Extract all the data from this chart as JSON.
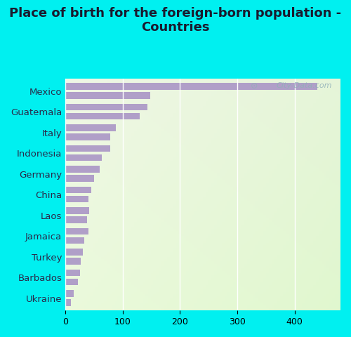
{
  "title": "Place of birth for the foreign-born population -\nCountries",
  "categories": [
    "Mexico",
    "Guatemala",
    "Italy",
    "Indonesia",
    "Germany",
    "China",
    "Laos",
    "Jamaica",
    "Turkey",
    "Barbados",
    "Ukraine"
  ],
  "values_top": [
    440,
    143,
    88,
    78,
    60,
    45,
    42,
    40,
    30,
    25,
    14
  ],
  "values_bottom": [
    148,
    130,
    78,
    63,
    50,
    40,
    38,
    33,
    27,
    22,
    10
  ],
  "bar_color": "#b09fc8",
  "background_color": "#00f0f0",
  "watermark": "City-Data.com",
  "xlim": [
    0,
    480
  ],
  "bar_height": 0.32,
  "title_fontsize": 13,
  "label_fontsize": 9.5,
  "tick_fontsize": 9
}
